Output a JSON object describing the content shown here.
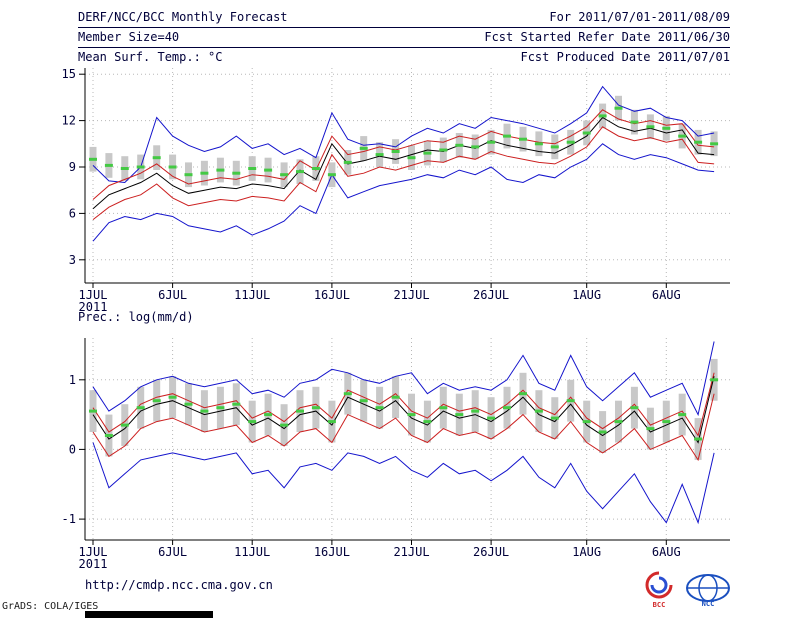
{
  "header": {
    "title": "DERF/NCC/BCC Monthly Forecast",
    "member_size": "Member Size=40",
    "for_range": "For 2011/07/01-2011/08/09",
    "fcst_started": "Fcst Started Refer Date 2011/06/30",
    "fcst_produced": "Fcst Produced Date 2011/07/01"
  },
  "footer": {
    "url": "http://cmdp.ncc.cma.gov.cn",
    "grads_credit": "GrADS: COLA/IGES",
    "logo_bcc_text": "BCC",
    "logo_ncc_text": "NCC"
  },
  "colors": {
    "text": "#00003a",
    "axis": "#000000",
    "grid": "#b8b8b8",
    "max_min_line": "#1414cc",
    "quartile_line": "#cc2020",
    "median_line": "#000000",
    "mean_marker": "#44c944",
    "spread_bar": "#c8c8c8"
  },
  "chart_data": [
    {
      "id": "temp",
      "type": "line",
      "title": "Mean Surf. Temp.: °C",
      "x_start_year": "2011",
      "x_tick_labels": [
        "1JUL",
        "6JUL",
        "11JUL",
        "16JUL",
        "21JUL",
        "26JUL",
        "1AUG",
        "6AUG"
      ],
      "x_tick_days": [
        1,
        6,
        11,
        16,
        21,
        26,
        32,
        37
      ],
      "xlim": [
        0.5,
        41
      ],
      "ylim": [
        1.5,
        15.4
      ],
      "yticks": [
        3,
        6,
        9,
        12,
        15
      ],
      "ytick_labels": [
        "3",
        "6",
        "9",
        "12",
        "15"
      ],
      "days": 40,
      "series": [
        {
          "name": "ensemble-max",
          "color": "#1414cc",
          "values": [
            9.1,
            8.1,
            8.0,
            9.0,
            12.2,
            11.0,
            10.4,
            10.0,
            10.3,
            11.0,
            10.2,
            10.5,
            9.8,
            10.2,
            9.6,
            12.5,
            10.8,
            10.4,
            10.5,
            10.3,
            11.0,
            11.5,
            11.2,
            11.8,
            11.5,
            12.2,
            12.0,
            11.8,
            11.5,
            11.2,
            11.8,
            12.5,
            14.2,
            13.0,
            12.6,
            12.8,
            12.2,
            12.0,
            11.0,
            11.2
          ]
        },
        {
          "name": "ensemble-min",
          "color": "#1414cc",
          "values": [
            4.2,
            5.4,
            5.8,
            5.6,
            6.0,
            5.8,
            5.2,
            5.0,
            4.8,
            5.2,
            4.6,
            5.0,
            5.5,
            6.5,
            6.0,
            8.5,
            7.0,
            7.4,
            7.8,
            8.0,
            8.2,
            8.5,
            8.3,
            8.8,
            8.5,
            9.0,
            8.2,
            8.0,
            8.5,
            8.3,
            9.0,
            9.5,
            10.5,
            9.8,
            9.5,
            9.8,
            9.6,
            9.2,
            8.8,
            8.7
          ]
        },
        {
          "name": "upper-quartile",
          "color": "#cc2020",
          "values": [
            6.9,
            7.8,
            8.2,
            8.6,
            9.2,
            8.4,
            7.9,
            8.1,
            8.3,
            8.2,
            8.5,
            8.4,
            8.2,
            9.4,
            8.8,
            11.0,
            9.8,
            10.0,
            10.3,
            10.1,
            10.4,
            10.7,
            10.6,
            11.0,
            10.8,
            11.3,
            11.0,
            10.8,
            10.6,
            10.5,
            11.0,
            11.6,
            12.7,
            12.1,
            11.8,
            12.0,
            11.7,
            11.8,
            10.4,
            10.3
          ]
        },
        {
          "name": "lower-quartile",
          "color": "#cc2020",
          "values": [
            5.6,
            6.4,
            6.9,
            7.2,
            7.9,
            7.0,
            6.5,
            6.7,
            6.9,
            6.8,
            7.1,
            7.0,
            6.8,
            8.0,
            7.4,
            9.8,
            8.4,
            8.6,
            9.0,
            8.8,
            9.1,
            9.4,
            9.3,
            9.7,
            9.5,
            10.0,
            9.7,
            9.5,
            9.3,
            9.2,
            9.7,
            10.3,
            11.6,
            11.0,
            10.7,
            10.9,
            10.6,
            10.8,
            9.3,
            9.2
          ]
        },
        {
          "name": "median",
          "color": "#000000",
          "values": [
            6.3,
            7.2,
            7.6,
            8.0,
            8.6,
            7.8,
            7.3,
            7.5,
            7.7,
            7.6,
            7.9,
            7.8,
            7.6,
            8.8,
            8.2,
            10.5,
            9.2,
            9.4,
            9.7,
            9.5,
            9.8,
            10.1,
            10.0,
            10.4,
            10.2,
            10.7,
            10.4,
            10.2,
            10.0,
            9.9,
            10.4,
            11.0,
            12.2,
            11.6,
            11.3,
            11.5,
            11.2,
            11.4,
            9.9,
            9.8
          ]
        }
      ],
      "ensemble_mean": {
        "color": "#44c944",
        "values": [
          9.5,
          9.1,
          8.9,
          9.0,
          9.6,
          9.0,
          8.5,
          8.6,
          8.8,
          8.6,
          8.9,
          8.8,
          8.5,
          8.7,
          8.9,
          8.5,
          9.3,
          10.2,
          9.8,
          10.0,
          9.6,
          9.9,
          10.1,
          10.4,
          10.3,
          10.6,
          11.0,
          10.8,
          10.5,
          10.3,
          10.6,
          11.2,
          12.3,
          12.8,
          11.9,
          11.6,
          11.5,
          11.0,
          10.6,
          10.5
        ]
      },
      "spread_bars": {
        "color": "#c8c8c8",
        "low": [
          8.7,
          8.3,
          8.1,
          8.2,
          8.8,
          8.2,
          7.7,
          7.8,
          8.0,
          7.8,
          8.1,
          8.0,
          7.7,
          7.9,
          8.1,
          7.7,
          8.5,
          9.4,
          9.0,
          9.2,
          8.8,
          9.1,
          9.3,
          9.6,
          9.5,
          9.8,
          10.2,
          10.0,
          9.7,
          9.5,
          9.8,
          10.4,
          11.5,
          12.0,
          11.1,
          10.8,
          10.7,
          10.2,
          9.8,
          9.7
        ],
        "high": [
          10.3,
          9.9,
          9.7,
          9.8,
          10.4,
          9.8,
          9.3,
          9.4,
          9.6,
          9.4,
          9.7,
          9.6,
          9.3,
          9.5,
          9.7,
          9.3,
          10.1,
          11.0,
          10.6,
          10.8,
          10.4,
          10.7,
          10.9,
          11.2,
          11.1,
          11.4,
          11.8,
          11.6,
          11.3,
          11.1,
          11.4,
          12.0,
          13.1,
          13.6,
          12.7,
          12.4,
          12.3,
          11.8,
          11.4,
          11.3
        ]
      }
    },
    {
      "id": "prec",
      "type": "line",
      "title": "Prec.: log(mm/d)",
      "x_start_year": "2011",
      "x_tick_labels": [
        "1JUL",
        "6JUL",
        "11JUL",
        "16JUL",
        "21JUL",
        "26JUL",
        "1AUG",
        "6AUG"
      ],
      "x_tick_days": [
        1,
        6,
        11,
        16,
        21,
        26,
        32,
        37
      ],
      "xlim": [
        0.5,
        41
      ],
      "ylim": [
        -1.3,
        1.6
      ],
      "yticks": [
        -1,
        0,
        1
      ],
      "ytick_labels": [
        "-1",
        "0",
        "1"
      ],
      "days": 40,
      "series": [
        {
          "name": "ensemble-max",
          "color": "#1414cc",
          "values": [
            0.9,
            0.55,
            0.7,
            0.9,
            1.0,
            1.05,
            0.95,
            0.9,
            0.95,
            1.0,
            0.8,
            0.85,
            0.75,
            0.95,
            1.0,
            1.15,
            1.1,
            1.0,
            0.95,
            1.05,
            1.1,
            0.8,
            0.95,
            0.85,
            0.9,
            0.85,
            1.0,
            1.35,
            0.95,
            0.85,
            1.35,
            0.9,
            0.7,
            0.9,
            1.1,
            0.75,
            0.85,
            0.95,
            0.5,
            1.55
          ]
        },
        {
          "name": "ensemble-min",
          "color": "#1414cc",
          "values": [
            0.1,
            -0.55,
            -0.35,
            -0.15,
            -0.1,
            -0.05,
            -0.1,
            -0.15,
            -0.1,
            -0.05,
            -0.35,
            -0.3,
            -0.55,
            -0.25,
            -0.2,
            -0.3,
            -0.05,
            -0.1,
            -0.2,
            -0.1,
            -0.3,
            -0.4,
            -0.2,
            -0.35,
            -0.3,
            -0.45,
            -0.3,
            -0.1,
            -0.4,
            -0.55,
            -0.2,
            -0.6,
            -0.85,
            -0.6,
            -0.35,
            -0.75,
            -1.05,
            -0.5,
            -1.05,
            -0.05
          ]
        },
        {
          "name": "upper-quartile",
          "color": "#cc2020",
          "values": [
            0.6,
            0.25,
            0.4,
            0.65,
            0.75,
            0.8,
            0.7,
            0.6,
            0.65,
            0.7,
            0.45,
            0.55,
            0.4,
            0.6,
            0.65,
            0.45,
            0.85,
            0.75,
            0.65,
            0.8,
            0.55,
            0.45,
            0.65,
            0.55,
            0.6,
            0.5,
            0.65,
            0.85,
            0.6,
            0.5,
            0.75,
            0.45,
            0.3,
            0.45,
            0.65,
            0.35,
            0.45,
            0.55,
            0.2,
            1.1
          ]
        },
        {
          "name": "lower-quartile",
          "color": "#cc2020",
          "values": [
            0.25,
            -0.1,
            0.05,
            0.3,
            0.4,
            0.45,
            0.35,
            0.25,
            0.3,
            0.35,
            0.1,
            0.2,
            0.05,
            0.25,
            0.3,
            0.1,
            0.5,
            0.4,
            0.3,
            0.45,
            0.2,
            0.1,
            0.3,
            0.2,
            0.25,
            0.15,
            0.3,
            0.5,
            0.25,
            0.15,
            0.4,
            0.1,
            -0.05,
            0.1,
            0.3,
            0.0,
            0.1,
            0.2,
            -0.15,
            0.8
          ]
        },
        {
          "name": "median",
          "color": "#000000",
          "values": [
            0.5,
            0.15,
            0.3,
            0.55,
            0.65,
            0.7,
            0.6,
            0.5,
            0.55,
            0.6,
            0.35,
            0.45,
            0.3,
            0.5,
            0.55,
            0.35,
            0.75,
            0.65,
            0.55,
            0.7,
            0.45,
            0.35,
            0.55,
            0.45,
            0.5,
            0.4,
            0.55,
            0.75,
            0.5,
            0.4,
            0.65,
            0.35,
            0.2,
            0.35,
            0.55,
            0.25,
            0.35,
            0.45,
            0.1,
            1.05
          ]
        }
      ],
      "ensemble_mean": {
        "color": "#44c944",
        "values": [
          0.55,
          0.2,
          0.35,
          0.6,
          0.7,
          0.75,
          0.65,
          0.55,
          0.6,
          0.65,
          0.4,
          0.5,
          0.35,
          0.55,
          0.6,
          0.4,
          0.8,
          0.7,
          0.6,
          0.75,
          0.5,
          0.4,
          0.6,
          0.5,
          0.55,
          0.45,
          0.6,
          0.8,
          0.55,
          0.45,
          0.7,
          0.4,
          0.25,
          0.4,
          0.6,
          0.3,
          0.4,
          0.5,
          0.15,
          1.0
        ]
      },
      "spread_bars": {
        "color": "#c8c8c8",
        "low": [
          0.25,
          -0.1,
          0.05,
          0.3,
          0.4,
          0.45,
          0.35,
          0.25,
          0.3,
          0.35,
          0.1,
          0.2,
          0.05,
          0.25,
          0.3,
          0.1,
          0.5,
          0.4,
          0.3,
          0.45,
          0.2,
          0.1,
          0.3,
          0.2,
          0.25,
          0.15,
          0.3,
          0.5,
          0.25,
          0.15,
          0.4,
          0.1,
          -0.05,
          0.1,
          0.3,
          0.0,
          0.1,
          0.2,
          -0.15,
          0.7
        ],
        "high": [
          0.85,
          0.5,
          0.65,
          0.9,
          1.0,
          1.05,
          0.95,
          0.85,
          0.9,
          0.95,
          0.7,
          0.8,
          0.65,
          0.85,
          0.9,
          0.7,
          1.1,
          1.0,
          0.9,
          1.05,
          0.8,
          0.7,
          0.9,
          0.8,
          0.85,
          0.75,
          0.9,
          1.1,
          0.85,
          0.75,
          1.0,
          0.7,
          0.55,
          0.7,
          0.9,
          0.6,
          0.7,
          0.8,
          0.45,
          1.3
        ]
      }
    }
  ]
}
